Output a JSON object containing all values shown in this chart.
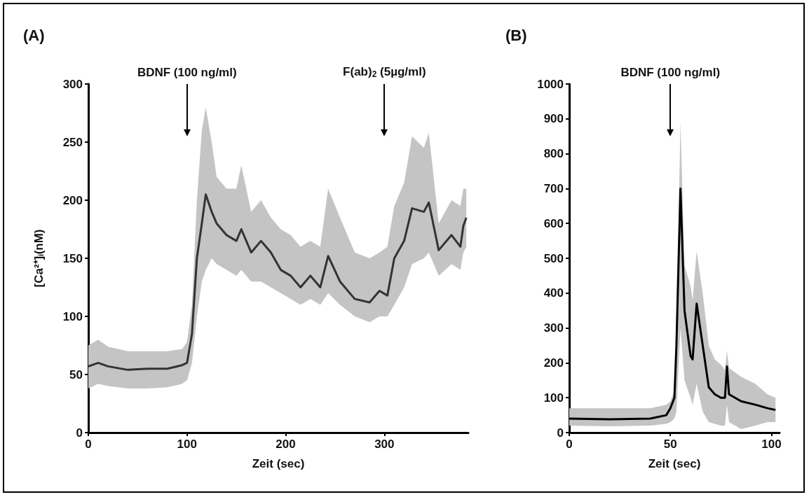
{
  "chart_data": [
    {
      "type": "line",
      "title": "(A)",
      "xlabel": "Zeit (sec)",
      "ylabel": "[Ca²⁺]ᵢ(nM)",
      "x": [
        0,
        10,
        20,
        40,
        60,
        80,
        95,
        100,
        105,
        110,
        115,
        119,
        125,
        130,
        140,
        150,
        155,
        165,
        175,
        185,
        195,
        205,
        215,
        225,
        235,
        243,
        255,
        270,
        285,
        295,
        303,
        310,
        320,
        328,
        340,
        345,
        355,
        368,
        377,
        380,
        383
      ],
      "series": [
        {
          "color": "#333333",
          "values": [
            57,
            60,
            57,
            54,
            55,
            55,
            58,
            60,
            85,
            150,
            180,
            205,
            190,
            180,
            170,
            165,
            175,
            155,
            165,
            155,
            140,
            135,
            125,
            135,
            125,
            152,
            130,
            115,
            112,
            122,
            118,
            150,
            165,
            193,
            190,
            198,
            157,
            170,
            160,
            178,
            185
          ],
          "lower": [
            38,
            42,
            40,
            38,
            38,
            39,
            42,
            45,
            60,
            100,
            130,
            140,
            150,
            145,
            140,
            135,
            140,
            130,
            130,
            125,
            120,
            115,
            110,
            115,
            110,
            120,
            110,
            100,
            95,
            100,
            100,
            110,
            125,
            145,
            150,
            155,
            135,
            145,
            140,
            155,
            160
          ],
          "upper": [
            75,
            80,
            74,
            70,
            70,
            70,
            72,
            78,
            110,
            200,
            260,
            280,
            250,
            220,
            210,
            210,
            230,
            190,
            200,
            185,
            175,
            170,
            160,
            165,
            160,
            210,
            185,
            155,
            150,
            155,
            160,
            195,
            215,
            255,
            245,
            258,
            180,
            200,
            195,
            210,
            210
          ]
        }
      ],
      "xlim": [
        0,
        385
      ],
      "xticks": [
        0,
        100,
        200,
        300
      ],
      "ylim": [
        0,
        300
      ],
      "yticks": [
        0,
        50,
        100,
        150,
        200,
        250,
        300
      ],
      "ref_lines": [
        {
          "axis": "x",
          "value": 100,
          "label": "BDNF (100 ng/ml)"
        },
        {
          "axis": "x",
          "value": 300,
          "label": "F(ab)$_{2}$ (5µg/ml)"
        }
      ]
    },
    {
      "type": "line",
      "title": "(B)",
      "xlabel": "Zeit (sec)",
      "x": [
        0,
        20,
        40,
        48,
        50,
        52,
        53,
        55,
        57,
        60,
        61,
        63,
        66,
        69,
        72,
        75,
        77,
        78,
        79,
        85,
        92,
        98,
        102
      ],
      "series": [
        {
          "color": "#000000",
          "values": [
            40,
            38,
            40,
            50,
            70,
            100,
            250,
            700,
            350,
            220,
            210,
            370,
            250,
            130,
            110,
            100,
            100,
            190,
            110,
            90,
            80,
            70,
            65
          ],
          "lower": [
            20,
            18,
            20,
            25,
            30,
            40,
            60,
            300,
            150,
            100,
            80,
            140,
            60,
            30,
            25,
            20,
            20,
            80,
            30,
            10,
            20,
            30,
            30
          ],
          "upper": [
            70,
            70,
            70,
            80,
            90,
            120,
            280,
            890,
            480,
            420,
            380,
            520,
            400,
            250,
            210,
            195,
            180,
            235,
            185,
            160,
            140,
            110,
            100
          ]
        }
      ],
      "xlim": [
        0,
        104
      ],
      "xticks": [
        0,
        50,
        100
      ],
      "ylim": [
        0,
        1000
      ],
      "yticks": [
        0,
        100,
        200,
        300,
        400,
        500,
        600,
        700,
        800,
        900,
        1000
      ],
      "ref_lines": [
        {
          "axis": "x",
          "value": 50,
          "label": "BDNF (100 ng/ml)"
        }
      ]
    }
  ]
}
